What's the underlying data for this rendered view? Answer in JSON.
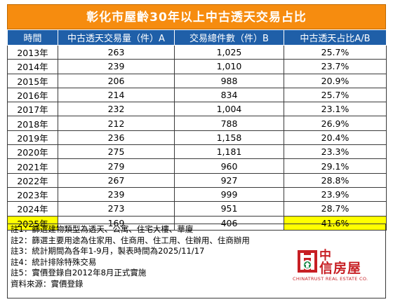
{
  "title": "彰化市屋齡30年以上中古透天交易占比",
  "headers": [
    "時間",
    "中古透天交易量（件）A",
    "交易總件數（件）B",
    "中古透天占比A/B"
  ],
  "rows": [
    {
      "year": "2013年",
      "a": "263",
      "b": "1,025",
      "ratio": "25.7%"
    },
    {
      "year": "2014年",
      "a": "239",
      "b": "1,010",
      "ratio": "23.7%"
    },
    {
      "year": "2015年",
      "a": "206",
      "b": "988",
      "ratio": "20.9%"
    },
    {
      "year": "2016年",
      "a": "214",
      "b": "834",
      "ratio": "25.7%"
    },
    {
      "year": "2017年",
      "a": "232",
      "b": "1,004",
      "ratio": "23.1%"
    },
    {
      "year": "2018年",
      "a": "212",
      "b": "788",
      "ratio": "26.9%"
    },
    {
      "year": "2019年",
      "a": "236",
      "b": "1,158",
      "ratio": "20.4%"
    },
    {
      "year": "2020年",
      "a": "275",
      "b": "1,181",
      "ratio": "23.3%"
    },
    {
      "year": "2021年",
      "a": "279",
      "b": "960",
      "ratio": "29.1%"
    },
    {
      "year": "2022年",
      "a": "267",
      "b": "927",
      "ratio": "28.8%"
    },
    {
      "year": "2023年",
      "a": "239",
      "b": "999",
      "ratio": "23.9%"
    },
    {
      "year": "2024年",
      "a": "273",
      "b": "951",
      "ratio": "28.7%"
    },
    {
      "year": "2025年",
      "a": "169",
      "b": "406",
      "ratio": "41.6%",
      "highlight": true
    }
  ],
  "notes": [
    "註1：篩選建物類型為透天、公寓、住宅大樓、華廈",
    "註2：篩選主要用途為住家用、住商用、住工用、住辦用、住商辦用",
    "註3：統計期間為各年1-9月，製表時間為2025/11/17",
    "註4：統計排除特殊交易",
    "註5：實價登錄自2012年8月正式實施",
    "資料來源：實價登錄"
  ],
  "logo": {
    "line1": "中",
    "line2": "信房屋",
    "english": "CHINATRUST REAL ESTATE CO."
  },
  "colors": {
    "title_bg": "#f68c0f",
    "header_bg": "#1f5fa8",
    "highlight": "#ffff00",
    "brand": "#c71f24"
  }
}
